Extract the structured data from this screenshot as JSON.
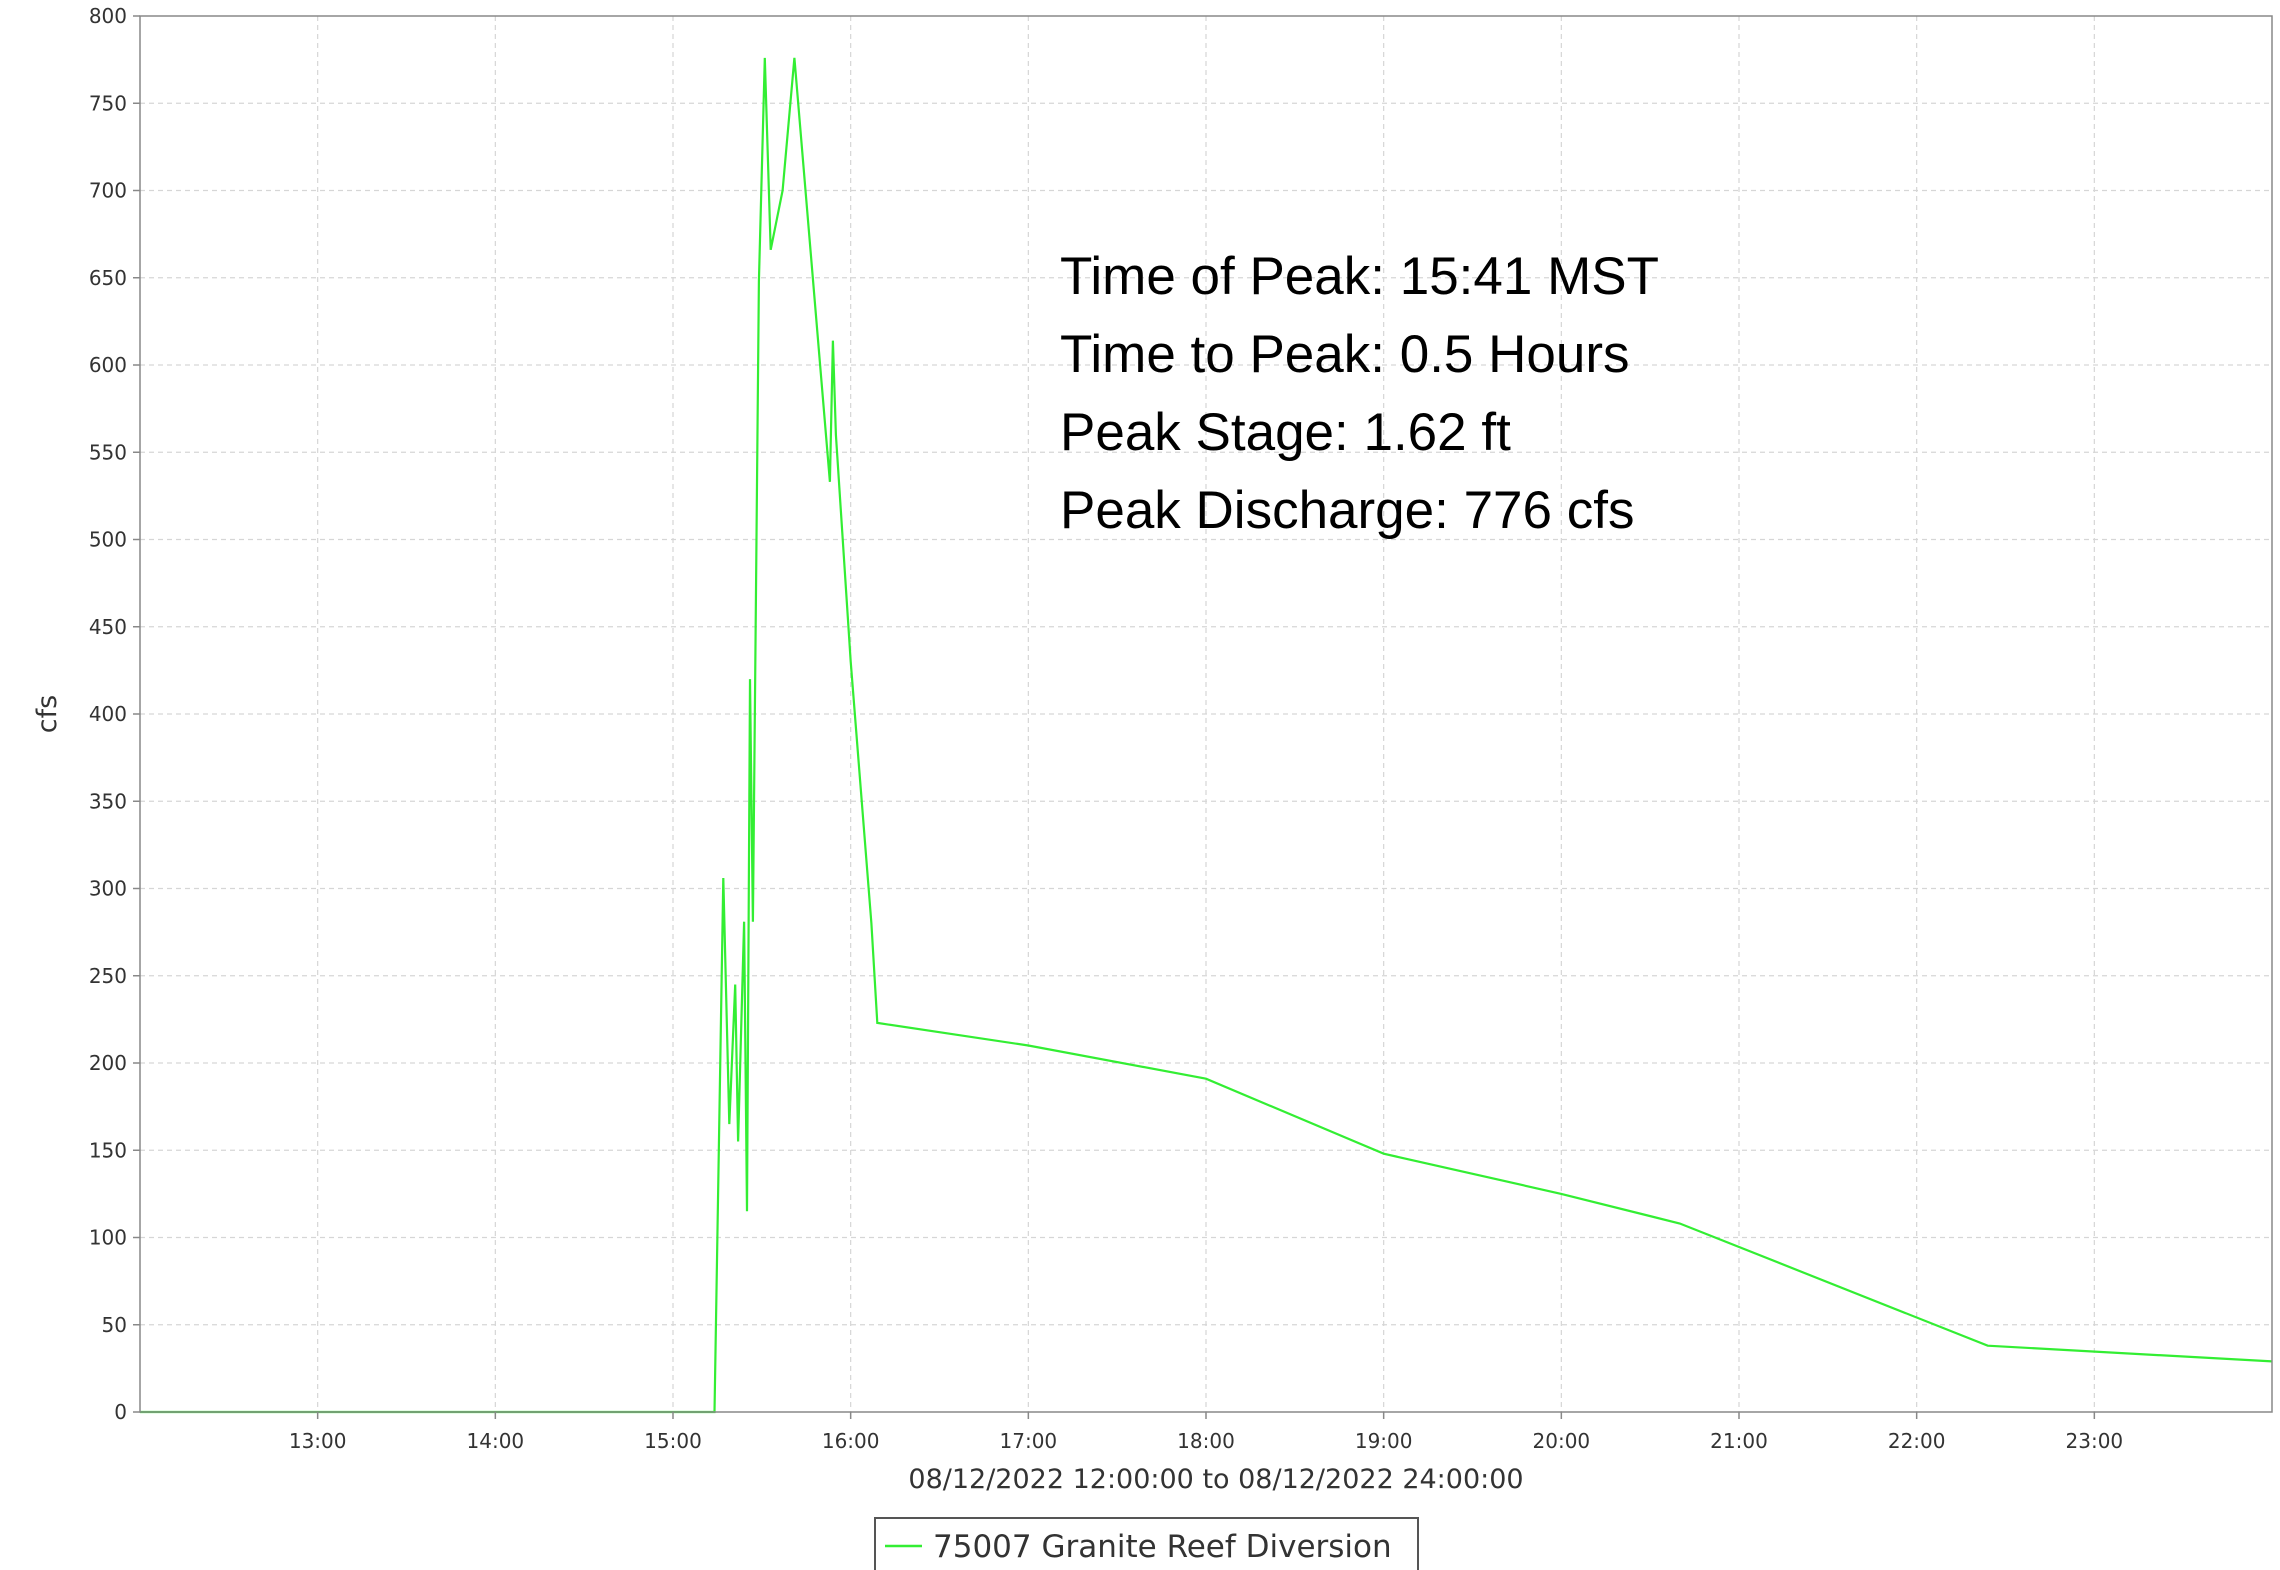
{
  "chart_data": {
    "type": "line",
    "title": "",
    "xlabel": "08/12/2022 12:00:00 to 08/12/2022 24:00:00",
    "ylabel": "cfs",
    "xlim": [
      "12:00",
      "24:00"
    ],
    "ylim": [
      0,
      800
    ],
    "grid": true,
    "legend_position": "bottom-center",
    "x_ticks": [
      "13:00",
      "14:00",
      "15:00",
      "16:00",
      "17:00",
      "18:00",
      "19:00",
      "20:00",
      "21:00",
      "22:00",
      "23:00"
    ],
    "y_ticks": [
      "0",
      "50",
      "100",
      "150",
      "200",
      "250",
      "300",
      "350",
      "400",
      "450",
      "500",
      "550",
      "600",
      "650",
      "700",
      "750",
      "800"
    ],
    "series": [
      {
        "name": "75007 Granite Reef Diversion",
        "color": "#33ee33",
        "x": [
          "12:00",
          "15:12",
          "15:14",
          "15:17",
          "15:19",
          "15:21",
          "15:22",
          "15:24",
          "15:25",
          "15:26",
          "15:27",
          "15:29",
          "15:31",
          "15:33",
          "15:37",
          "15:41",
          "15:53",
          "15:54",
          "15:55",
          "16:00",
          "16:07",
          "16:09",
          "17:00",
          "18:00",
          "19:00",
          "20:00",
          "20:40",
          "22:24",
          "24:00"
        ],
        "y": [
          0,
          0,
          0,
          306,
          165,
          245,
          155,
          281,
          115,
          420,
          281,
          648,
          776,
          666,
          700,
          776,
          533,
          614,
          560,
          430,
          280,
          223,
          210,
          191,
          148,
          125,
          108,
          38,
          29
        ]
      }
    ],
    "annotations": [
      "Time of Peak: 15:41 MST",
      "Time to Peak: 0.5 Hours",
      "Peak Stage: 1.62 ft",
      "Peak Discharge: 776 cfs"
    ]
  }
}
